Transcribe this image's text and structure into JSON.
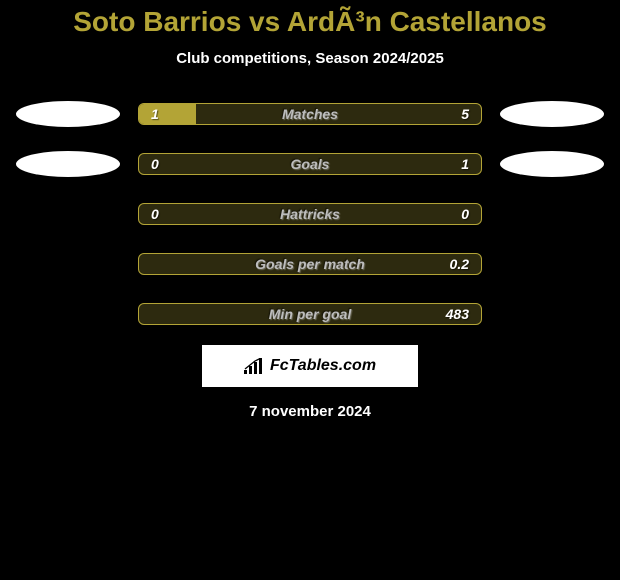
{
  "title": {
    "text": "Soto Barrios vs ArdÃ³n Castellanos",
    "fontsize": 28,
    "color": "#b3a436"
  },
  "subtitle": {
    "text": "Club competitions, Season 2024/2025",
    "fontsize": 15,
    "color": "#ffffff"
  },
  "bar_style": {
    "track_bg": "#2d2a0f",
    "fill_color": "#b3a436",
    "border_color": "#b3a436",
    "label_color": "#bdbdbd",
    "value_color": "#ffffff",
    "label_fontsize": 14,
    "value_fontsize": 14
  },
  "ellipse": {
    "color": "#ffffff"
  },
  "rows": [
    {
      "label": "Matches",
      "left_val": "1",
      "right_val": "5",
      "left_pct": 16.7,
      "right_pct": 0,
      "show_ellipses": true
    },
    {
      "label": "Goals",
      "left_val": "0",
      "right_val": "1",
      "left_pct": 0,
      "right_pct": 0,
      "show_ellipses": true
    },
    {
      "label": "Hattricks",
      "left_val": "0",
      "right_val": "0",
      "left_pct": 0,
      "right_pct": 0,
      "show_ellipses": false
    },
    {
      "label": "Goals per match",
      "left_val": "",
      "right_val": "0.2",
      "left_pct": 0,
      "right_pct": 0,
      "show_ellipses": false
    },
    {
      "label": "Min per goal",
      "left_val": "",
      "right_val": "483",
      "left_pct": 0,
      "right_pct": 0,
      "show_ellipses": false
    }
  ],
  "footer": {
    "brand": "FcTables.com",
    "brand_fontsize": 16,
    "date": "7 november 2024",
    "date_fontsize": 15,
    "date_color": "#ffffff"
  }
}
